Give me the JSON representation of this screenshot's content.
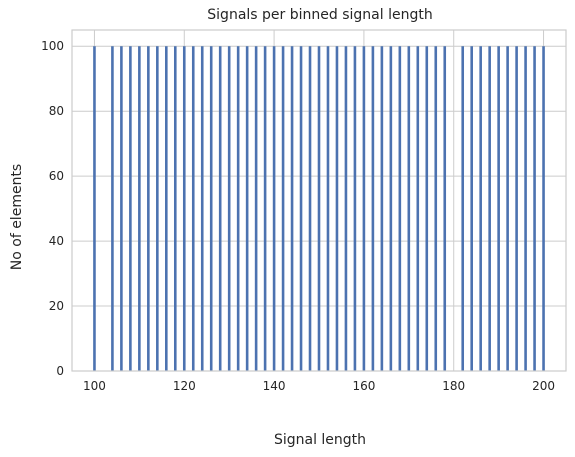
{
  "chart_data": {
    "type": "bar",
    "title": "Signals per binned signal length",
    "xlabel": "Signal length",
    "ylabel": "No of elements",
    "xlim": [
      95,
      205
    ],
    "ylim": [
      0,
      105
    ],
    "xticks": [
      100,
      120,
      140,
      160,
      180,
      200
    ],
    "yticks": [
      0,
      20,
      40,
      60,
      80,
      100
    ],
    "grid": true,
    "bar_color": "#4c72b0",
    "bins": [
      {
        "x": 100,
        "value": 100
      },
      {
        "x": 104,
        "value": 100
      },
      {
        "x": 106,
        "value": 100
      },
      {
        "x": 108,
        "value": 100
      },
      {
        "x": 110,
        "value": 100
      },
      {
        "x": 112,
        "value": 100
      },
      {
        "x": 114,
        "value": 100
      },
      {
        "x": 116,
        "value": 100
      },
      {
        "x": 118,
        "value": 100
      },
      {
        "x": 120,
        "value": 100
      },
      {
        "x": 122,
        "value": 100
      },
      {
        "x": 124,
        "value": 100
      },
      {
        "x": 126,
        "value": 100
      },
      {
        "x": 128,
        "value": 100
      },
      {
        "x": 130,
        "value": 100
      },
      {
        "x": 132,
        "value": 100
      },
      {
        "x": 134,
        "value": 100
      },
      {
        "x": 136,
        "value": 100
      },
      {
        "x": 138,
        "value": 100
      },
      {
        "x": 140,
        "value": 100
      },
      {
        "x": 142,
        "value": 100
      },
      {
        "x": 144,
        "value": 100
      },
      {
        "x": 146,
        "value": 100
      },
      {
        "x": 148,
        "value": 100
      },
      {
        "x": 150,
        "value": 100
      },
      {
        "x": 152,
        "value": 100
      },
      {
        "x": 154,
        "value": 100
      },
      {
        "x": 156,
        "value": 100
      },
      {
        "x": 158,
        "value": 100
      },
      {
        "x": 160,
        "value": 100
      },
      {
        "x": 162,
        "value": 100
      },
      {
        "x": 164,
        "value": 100
      },
      {
        "x": 166,
        "value": 100
      },
      {
        "x": 168,
        "value": 100
      },
      {
        "x": 170,
        "value": 100
      },
      {
        "x": 172,
        "value": 100
      },
      {
        "x": 174,
        "value": 100
      },
      {
        "x": 176,
        "value": 100
      },
      {
        "x": 178,
        "value": 100
      },
      {
        "x": 182,
        "value": 100
      },
      {
        "x": 184,
        "value": 100
      },
      {
        "x": 186,
        "value": 100
      },
      {
        "x": 188,
        "value": 100
      },
      {
        "x": 190,
        "value": 100
      },
      {
        "x": 192,
        "value": 100
      },
      {
        "x": 194,
        "value": 100
      },
      {
        "x": 196,
        "value": 100
      },
      {
        "x": 198,
        "value": 100
      },
      {
        "x": 200,
        "value": 100
      }
    ]
  }
}
